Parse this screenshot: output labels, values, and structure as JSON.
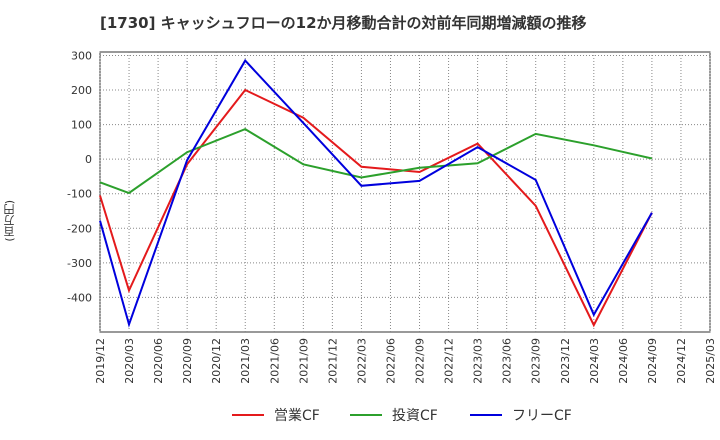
{
  "chart_data": {
    "type": "line",
    "title": "[1730]  キャッシュフローの12か月移動合計の対前年同期増減額の推移",
    "xlabel": "",
    "ylabel": "(百万円)",
    "categories": [
      "2019/12",
      "2020/03",
      "2020/06",
      "2020/09",
      "2020/12",
      "2021/03",
      "2021/06",
      "2021/09",
      "2021/12",
      "2022/03",
      "2022/06",
      "2022/09",
      "2022/12",
      "2023/03",
      "2023/06",
      "2023/09",
      "2023/12",
      "2024/03",
      "2024/06",
      "2024/09",
      "2024/12",
      "2025/03"
    ],
    "yticks": [
      300,
      200,
      100,
      0,
      -100,
      -200,
      -300,
      -400
    ],
    "ylim": [
      -500,
      310
    ],
    "grid": true,
    "legend_position": "bottom",
    "series": [
      {
        "name": "営業CF",
        "color": "#e41a1c",
        "values": [
          -105,
          -380,
          null,
          -15,
          null,
          200,
          null,
          120,
          null,
          -22,
          null,
          -37,
          null,
          45,
          null,
          -135,
          null,
          -480,
          null,
          -155,
          null,
          null
        ]
      },
      {
        "name": "投資CF",
        "color": "#2ca02c",
        "values": [
          -67,
          -98,
          null,
          20,
          null,
          87,
          null,
          -15,
          null,
          -53,
          null,
          -25,
          null,
          -12,
          null,
          73,
          null,
          40,
          null,
          2,
          null,
          null
        ]
      },
      {
        "name": "フリーCF",
        "color": "#0000dd",
        "values": [
          -178,
          -478,
          null,
          -3,
          null,
          285,
          null,
          105,
          null,
          -77,
          null,
          -63,
          null,
          35,
          null,
          -60,
          null,
          -450,
          null,
          -155,
          null,
          null
        ]
      }
    ]
  }
}
